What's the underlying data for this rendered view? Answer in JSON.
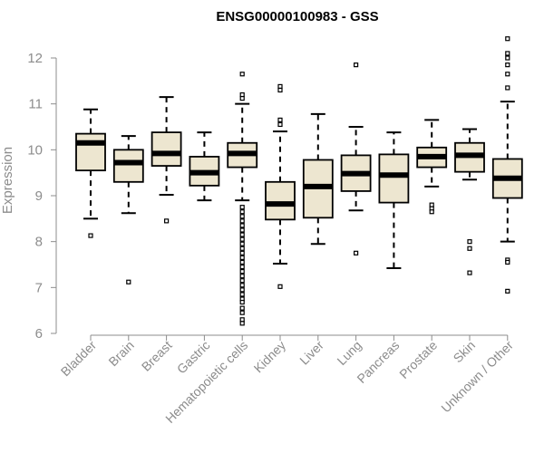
{
  "chart_data": {
    "type": "boxplot",
    "title": "ENSG00000100983 - GSS",
    "xlabel": "",
    "ylabel": "Expression",
    "ylim": [
      6,
      12.4
    ],
    "yticks": [
      6,
      7,
      8,
      9,
      10,
      11,
      12
    ],
    "colors": {
      "box_fill": "#ede6d0",
      "stroke": "#000000",
      "axis": "#8c8c8c"
    },
    "categories": [
      "Bladder",
      "Brain",
      "Breast",
      "Gastric",
      "Hematopoietic cells",
      "Kidney",
      "Liver",
      "Lung",
      "Pancreas",
      "Prostate",
      "Skin",
      "Unknown / Other"
    ],
    "boxes": [
      {
        "name": "Bladder",
        "whisker_low": 8.5,
        "q1": 9.55,
        "median": 10.15,
        "q3": 10.35,
        "whisker_high": 10.88,
        "outliers": [
          8.13
        ]
      },
      {
        "name": "Brain",
        "whisker_low": 8.62,
        "q1": 9.3,
        "median": 9.72,
        "q3": 10.0,
        "whisker_high": 10.3,
        "outliers": [
          7.12
        ]
      },
      {
        "name": "Breast",
        "whisker_low": 9.02,
        "q1": 9.65,
        "median": 9.92,
        "q3": 10.38,
        "whisker_high": 11.15,
        "outliers": [
          8.45
        ]
      },
      {
        "name": "Gastric",
        "whisker_low": 8.9,
        "q1": 9.22,
        "median": 9.5,
        "q3": 9.85,
        "whisker_high": 10.38,
        "outliers": []
      },
      {
        "name": "Hematopoietic cells",
        "whisker_low": 8.9,
        "q1": 9.62,
        "median": 9.92,
        "q3": 10.15,
        "whisker_high": 11.0,
        "outliers": [
          11.65,
          11.2,
          11.12,
          8.75,
          8.65,
          8.55,
          8.45,
          8.35,
          8.25,
          8.15,
          8.05,
          7.95,
          7.85,
          7.75,
          7.65,
          7.55,
          7.45,
          7.35,
          7.25,
          7.15,
          7.05,
          6.95,
          6.85,
          6.75,
          6.68,
          6.55,
          6.45,
          6.3,
          6.22
        ]
      },
      {
        "name": "Kidney",
        "whisker_low": 7.52,
        "q1": 8.48,
        "median": 8.82,
        "q3": 9.3,
        "whisker_high": 10.4,
        "outliers": [
          11.38,
          11.3,
          10.65,
          10.55,
          7.02
        ]
      },
      {
        "name": "Liver",
        "whisker_low": 7.95,
        "q1": 8.52,
        "median": 9.2,
        "q3": 9.78,
        "whisker_high": 10.78,
        "outliers": []
      },
      {
        "name": "Lung",
        "whisker_low": 8.68,
        "q1": 9.1,
        "median": 9.48,
        "q3": 9.88,
        "whisker_high": 10.5,
        "outliers": [
          11.85,
          7.75
        ]
      },
      {
        "name": "Pancreas",
        "whisker_low": 7.42,
        "q1": 8.85,
        "median": 9.45,
        "q3": 9.9,
        "whisker_high": 10.38,
        "outliers": []
      },
      {
        "name": "Prostate",
        "whisker_low": 9.2,
        "q1": 9.62,
        "median": 9.85,
        "q3": 10.05,
        "whisker_high": 10.65,
        "outliers": [
          8.8,
          8.72,
          8.65
        ]
      },
      {
        "name": "Skin",
        "whisker_low": 9.35,
        "q1": 9.52,
        "median": 9.88,
        "q3": 10.15,
        "whisker_high": 10.45,
        "outliers": [
          8.0,
          7.85,
          7.32
        ]
      },
      {
        "name": "Unknown / Other",
        "whisker_low": 8.0,
        "q1": 8.95,
        "median": 9.38,
        "q3": 9.8,
        "whisker_high": 11.05,
        "outliers": [
          12.42,
          12.1,
          12.0,
          11.85,
          11.65,
          11.35,
          7.6,
          7.55,
          6.92
        ]
      }
    ]
  }
}
